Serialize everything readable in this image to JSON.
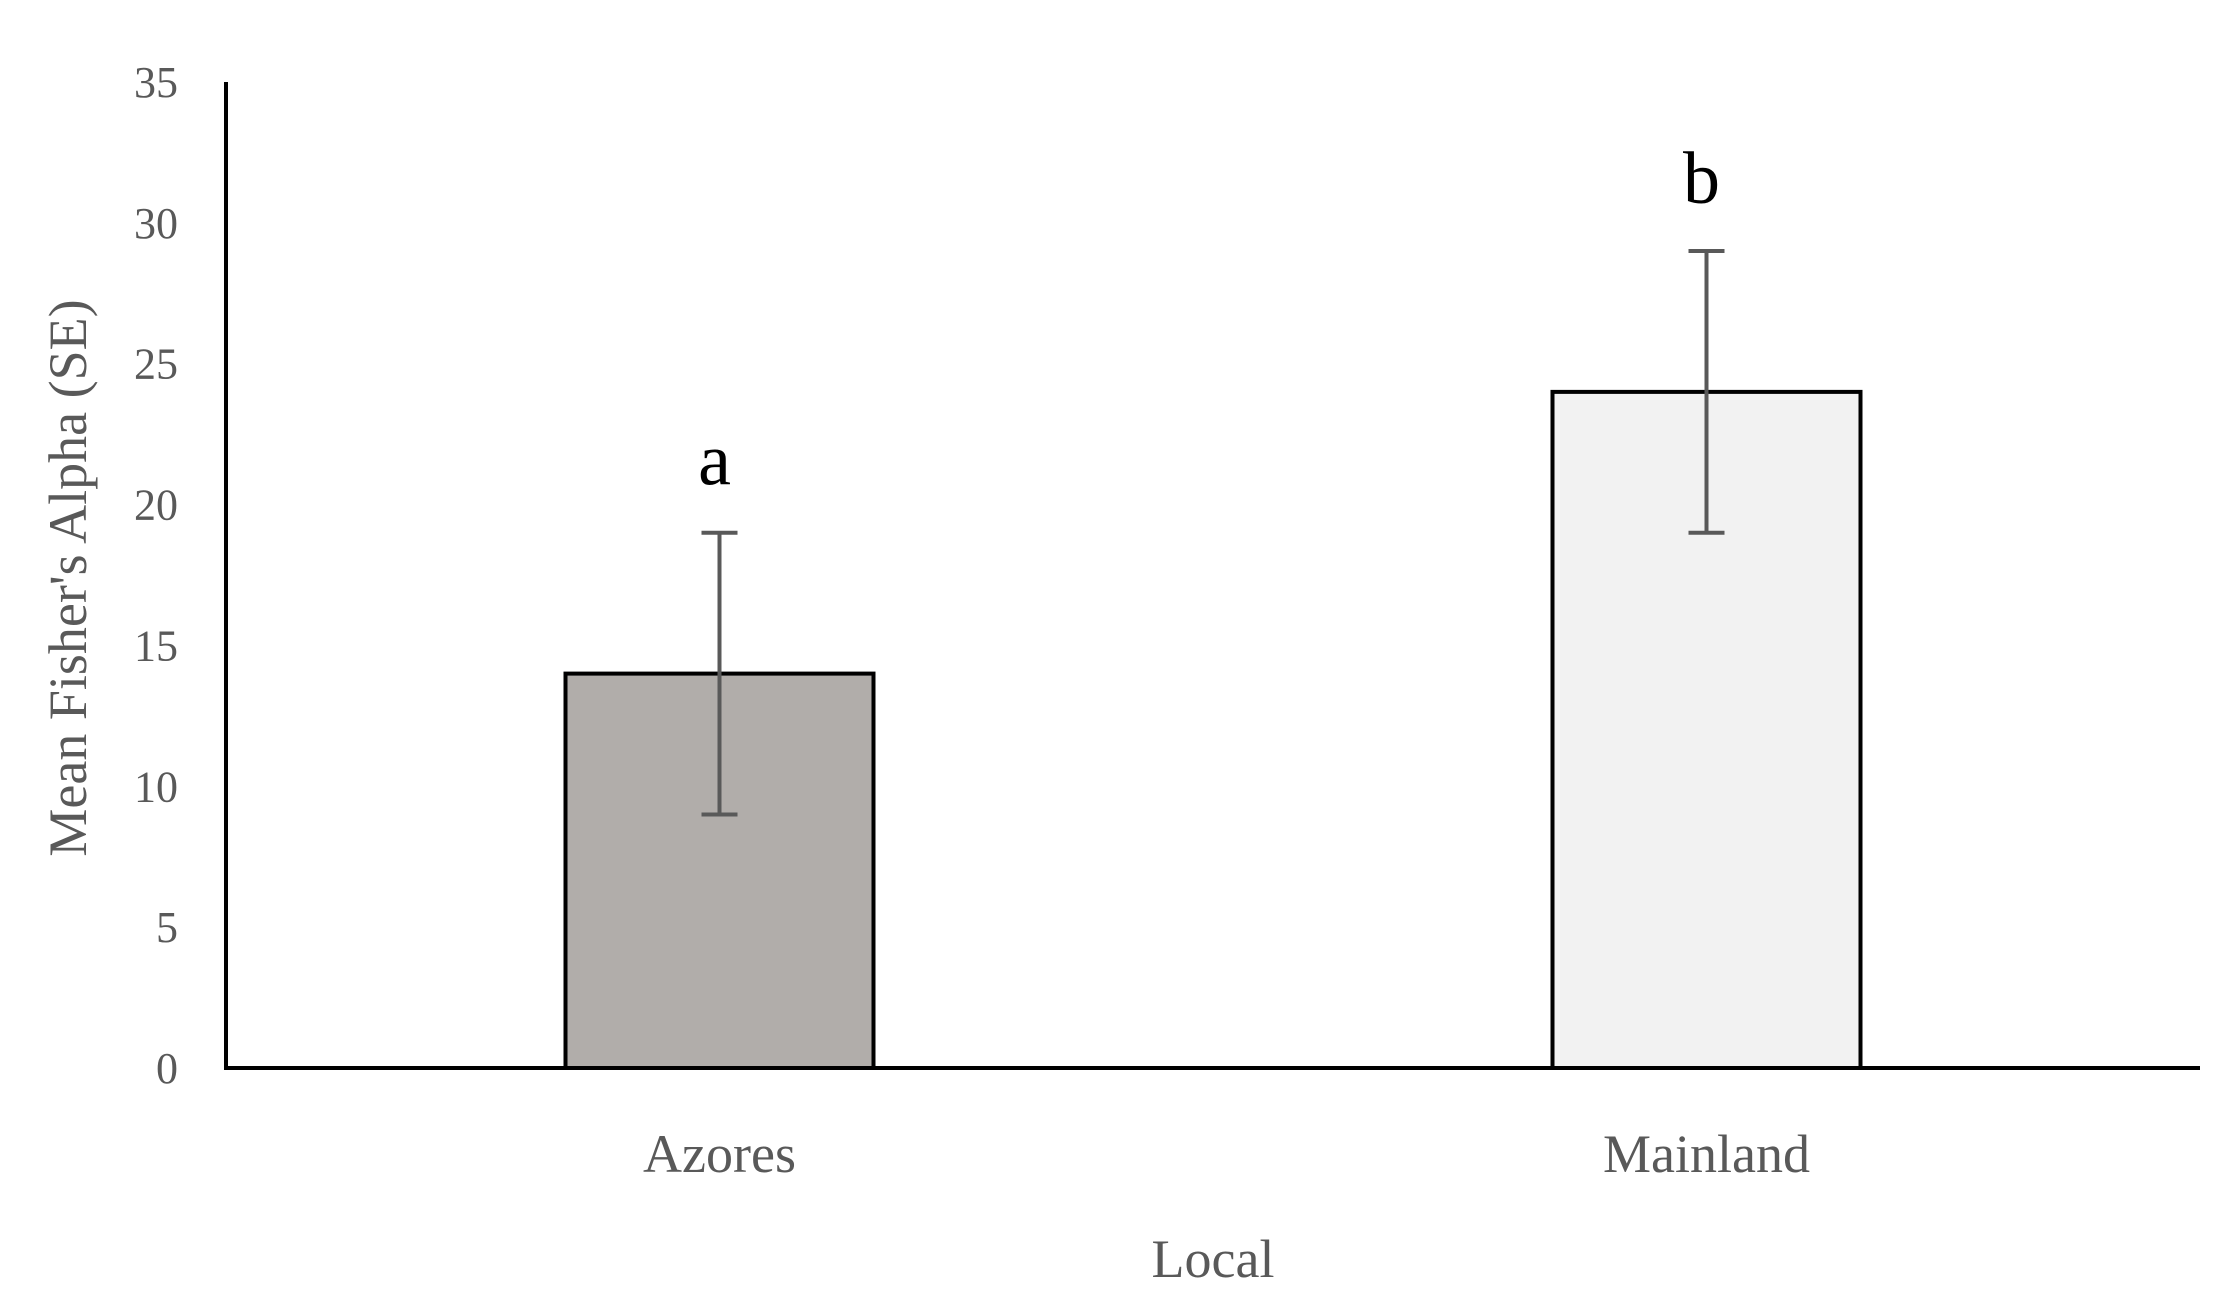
{
  "chart_data": {
    "type": "bar",
    "title": "",
    "xlabel": "Local",
    "ylabel": "Mean Fisher's Alpha (SE)",
    "ylim": [
      0,
      35
    ],
    "yticks": [
      0,
      5,
      10,
      15,
      20,
      25,
      30,
      35
    ],
    "ytick_labels": [
      "0",
      "5",
      "10",
      "15",
      "20",
      "25",
      "30",
      "35"
    ],
    "categories": [
      "Azores",
      "Mainland"
    ],
    "values": [
      14,
      24
    ],
    "error": [
      5,
      5
    ],
    "significance_labels": [
      "a",
      "b"
    ],
    "bar_colors": [
      "#b1adaa",
      "#f2f2f2"
    ],
    "bar_edge_color": "#000000",
    "errorbar_color": "#595959",
    "axis_color": "#000000",
    "grid": false,
    "legend": "none"
  }
}
